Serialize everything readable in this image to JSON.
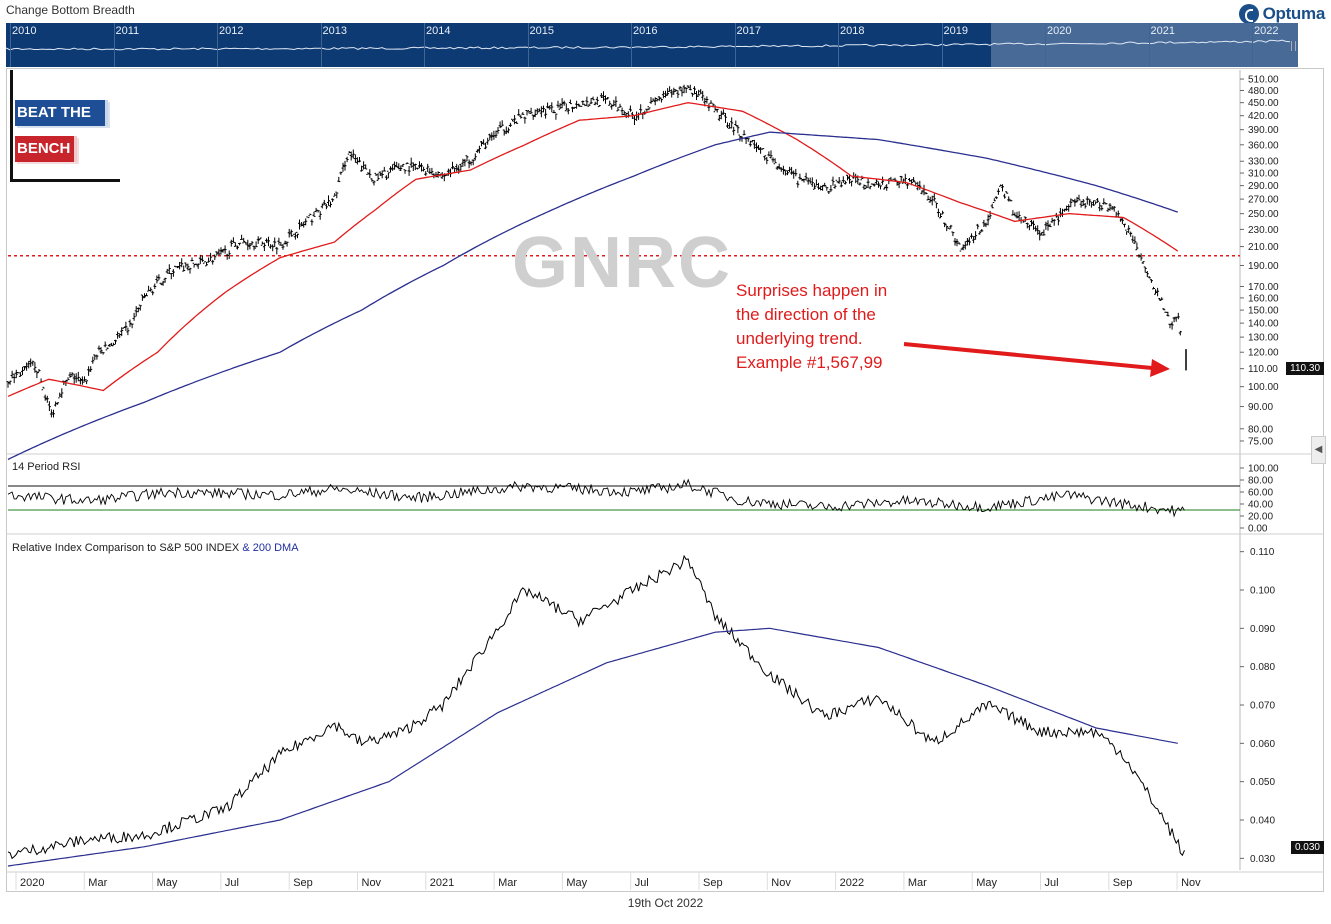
{
  "header": {
    "topline": "Change Bottom Breadth",
    "logo_text": "Optuma",
    "date_footer": "19th Oct 2022"
  },
  "navigator": {
    "years": [
      "2010",
      "2011",
      "2012",
      "2013",
      "2014",
      "2015",
      "2016",
      "2017",
      "2018",
      "2019",
      "2020",
      "2021",
      "2022"
    ]
  },
  "branding": {
    "line1": "BEAT THE",
    "line2": "BENCH"
  },
  "watermark": "GNRC",
  "annotation": "Surprises happen in\nthe direction of the\nunderlying trend.\nExample #1,567,99",
  "panels": {
    "rsi_label": "14 Period RSI",
    "rel_label_a": "Relative Index Comparison to S&P 500 INDEX",
    "rel_label_b": "& 200 DMA"
  },
  "colors": {
    "price": "#000000",
    "ma_short": "#e11b1b",
    "ma_long": "#2b2f8f",
    "resistance_line": "#e11b1b",
    "rsi_upper": "#111111",
    "rsi_lower": "#1e7d1e",
    "nav_bg": "#0d3a73"
  },
  "chart_data": [
    {
      "type": "line",
      "title": "GNRC",
      "x_labels": [
        "2020",
        "Mar",
        "May",
        "Jul",
        "Sep",
        "Nov",
        "2021",
        "Mar",
        "May",
        "Jul",
        "Sep",
        "Nov",
        "2022",
        "Mar",
        "May",
        "Jul",
        "Sep",
        "Nov"
      ],
      "y_scale": "log",
      "y_ticks": [
        510,
        480,
        450,
        420,
        390,
        360,
        330,
        310,
        290,
        270,
        250,
        230,
        210,
        190,
        170,
        160,
        150,
        140,
        130,
        120,
        110,
        100,
        90,
        80,
        75
      ],
      "y_tick_labels": [
        "510.00",
        "480.00",
        "450.00",
        "420.00",
        "390.00",
        "360.00",
        "330.00",
        "310.00",
        "290.00",
        "270.00",
        "250.00",
        "230.00",
        "210.00",
        "190.00",
        "170.00",
        "160.00",
        "150.00",
        "140.00",
        "130.00",
        "120.00",
        "110.00",
        "100.00",
        "90.00",
        "80.00",
        "75.00"
      ],
      "ylim": [
        70,
        535
      ],
      "last_value": "110.30",
      "resistance_level": 200,
      "series": [
        {
          "name": "price",
          "style": "ohlc",
          "points": [
            [
              0,
              104
            ],
            [
              0.05,
              108
            ],
            [
              0.1,
              113
            ],
            [
              0.13,
              99
            ],
            [
              0.16,
              86
            ],
            [
              0.2,
              100
            ],
            [
              0.24,
              106
            ],
            [
              0.28,
              101
            ],
            [
              0.32,
              118
            ],
            [
              0.38,
              125
            ],
            [
              0.45,
              138
            ],
            [
              0.5,
              160
            ],
            [
              0.6,
              185
            ],
            [
              0.7,
              192
            ],
            [
              0.78,
              200
            ],
            [
              0.85,
              215
            ],
            [
              0.95,
              215
            ],
            [
              1.0,
              212
            ],
            [
              1.1,
              240
            ],
            [
              1.2,
              270
            ],
            [
              1.25,
              345
            ],
            [
              1.3,
              320
            ],
            [
              1.35,
              300
            ],
            [
              1.45,
              322
            ],
            [
              1.55,
              315
            ],
            [
              1.6,
              305
            ],
            [
              1.7,
              335
            ],
            [
              1.8,
              385
            ],
            [
              1.9,
              420
            ],
            [
              1.95,
              435
            ],
            [
              2.0,
              430
            ],
            [
              2.1,
              450
            ],
            [
              2.2,
              455
            ],
            [
              2.3,
              420
            ],
            [
              2.4,
              460
            ],
            [
              2.5,
              490
            ],
            [
              2.6,
              430
            ],
            [
              2.7,
              380
            ],
            [
              2.8,
              335
            ],
            [
              2.9,
              300
            ],
            [
              3.0,
              285
            ],
            [
              3.1,
              300
            ],
            [
              3.2,
              290
            ],
            [
              3.3,
              300
            ],
            [
              3.35,
              285
            ],
            [
              3.4,
              268
            ],
            [
              3.5,
              208
            ],
            [
              3.6,
              240
            ],
            [
              3.65,
              290
            ],
            [
              3.7,
              250
            ],
            [
              3.8,
              225
            ],
            [
              3.9,
              260
            ],
            [
              3.95,
              265
            ],
            [
              4.05,
              262
            ],
            [
              4.1,
              240
            ],
            [
              4.2,
              178
            ],
            [
              4.25,
              150
            ],
            [
              4.28,
              138
            ],
            [
              4.3,
              145
            ],
            [
              4.32,
              118
            ],
            [
              4.33,
              110.3
            ]
          ]
        },
        {
          "name": "50 DMA",
          "style": "line",
          "color": "#e11b1b",
          "points": [
            [
              0,
              95
            ],
            [
              0.15,
              104
            ],
            [
              0.35,
              98
            ],
            [
              0.55,
              120
            ],
            [
              0.8,
              165
            ],
            [
              1.0,
              198
            ],
            [
              1.2,
              215
            ],
            [
              1.35,
              255
            ],
            [
              1.5,
              300
            ],
            [
              1.7,
              315
            ],
            [
              1.9,
              360
            ],
            [
              2.1,
              410
            ],
            [
              2.3,
              420
            ],
            [
              2.5,
              450
            ],
            [
              2.7,
              430
            ],
            [
              2.9,
              370
            ],
            [
              3.1,
              305
            ],
            [
              3.3,
              295
            ],
            [
              3.5,
              265
            ],
            [
              3.7,
              240
            ],
            [
              3.9,
              250
            ],
            [
              4.1,
              245
            ],
            [
              4.3,
              205
            ]
          ]
        },
        {
          "name": "200 DMA",
          "style": "line",
          "color": "#2b2f8f",
          "points": [
            [
              0,
              68
            ],
            [
              0.5,
              92
            ],
            [
              1.0,
              120
            ],
            [
              1.3,
              150
            ],
            [
              1.6,
              190
            ],
            [
              2.0,
              255
            ],
            [
              2.3,
              305
            ],
            [
              2.6,
              360
            ],
            [
              2.8,
              385
            ],
            [
              3.2,
              370
            ],
            [
              3.6,
              335
            ],
            [
              4.0,
              290
            ],
            [
              4.3,
              252
            ]
          ]
        }
      ]
    },
    {
      "type": "line",
      "title": "14 Period RSI",
      "y_tick_labels": [
        "100.00",
        "80.00",
        "60.00",
        "40.00",
        "20.00",
        "0.00"
      ],
      "ylim": [
        0,
        100
      ],
      "upper_band": 70,
      "lower_band": 30,
      "series": [
        {
          "name": "RSI",
          "points": [
            [
              0,
              55
            ],
            [
              0.3,
              45
            ],
            [
              0.6,
              60
            ],
            [
              1.0,
              55
            ],
            [
              1.2,
              65
            ],
            [
              1.5,
              50
            ],
            [
              1.9,
              70
            ],
            [
              2.3,
              60
            ],
            [
              2.5,
              72
            ],
            [
              2.7,
              45
            ],
            [
              3.0,
              35
            ],
            [
              3.3,
              45
            ],
            [
              3.6,
              35
            ],
            [
              3.9,
              55
            ],
            [
              4.1,
              40
            ],
            [
              4.3,
              28
            ]
          ]
        }
      ]
    },
    {
      "type": "line",
      "title": "Relative Index Comparison to S&P 500 INDEX & 200 DMA",
      "y_tick_labels": [
        "0.110",
        "0.100",
        "0.090",
        "0.080",
        "0.070",
        "0.060",
        "0.050",
        "0.040",
        "0.030"
      ],
      "ylim": [
        0.028,
        0.112
      ],
      "last_value": "0.030",
      "series": [
        {
          "name": "relative",
          "points": [
            [
              0,
              0.031
            ],
            [
              0.3,
              0.035
            ],
            [
              0.5,
              0.036
            ],
            [
              0.8,
              0.043
            ],
            [
              1.0,
              0.057
            ],
            [
              1.2,
              0.065
            ],
            [
              1.3,
              0.06
            ],
            [
              1.45,
              0.063
            ],
            [
              1.6,
              0.07
            ],
            [
              1.9,
              0.1
            ],
            [
              2.1,
              0.092
            ],
            [
              2.3,
              0.1
            ],
            [
              2.5,
              0.108
            ],
            [
              2.6,
              0.093
            ],
            [
              2.8,
              0.078
            ],
            [
              3.0,
              0.067
            ],
            [
              3.2,
              0.072
            ],
            [
              3.4,
              0.06
            ],
            [
              3.6,
              0.07
            ],
            [
              3.8,
              0.063
            ],
            [
              4.0,
              0.063
            ],
            [
              4.1,
              0.057
            ],
            [
              4.25,
              0.04
            ],
            [
              4.33,
              0.03
            ]
          ]
        },
        {
          "name": "200 DMA",
          "color": "#2b2f8f",
          "points": [
            [
              0,
              0.028
            ],
            [
              0.5,
              0.033
            ],
            [
              1.0,
              0.04
            ],
            [
              1.4,
              0.05
            ],
            [
              1.8,
              0.068
            ],
            [
              2.2,
              0.081
            ],
            [
              2.6,
              0.089
            ],
            [
              2.8,
              0.09
            ],
            [
              3.2,
              0.085
            ],
            [
              3.6,
              0.075
            ],
            [
              4.0,
              0.064
            ],
            [
              4.3,
              0.06
            ]
          ]
        }
      ]
    }
  ]
}
